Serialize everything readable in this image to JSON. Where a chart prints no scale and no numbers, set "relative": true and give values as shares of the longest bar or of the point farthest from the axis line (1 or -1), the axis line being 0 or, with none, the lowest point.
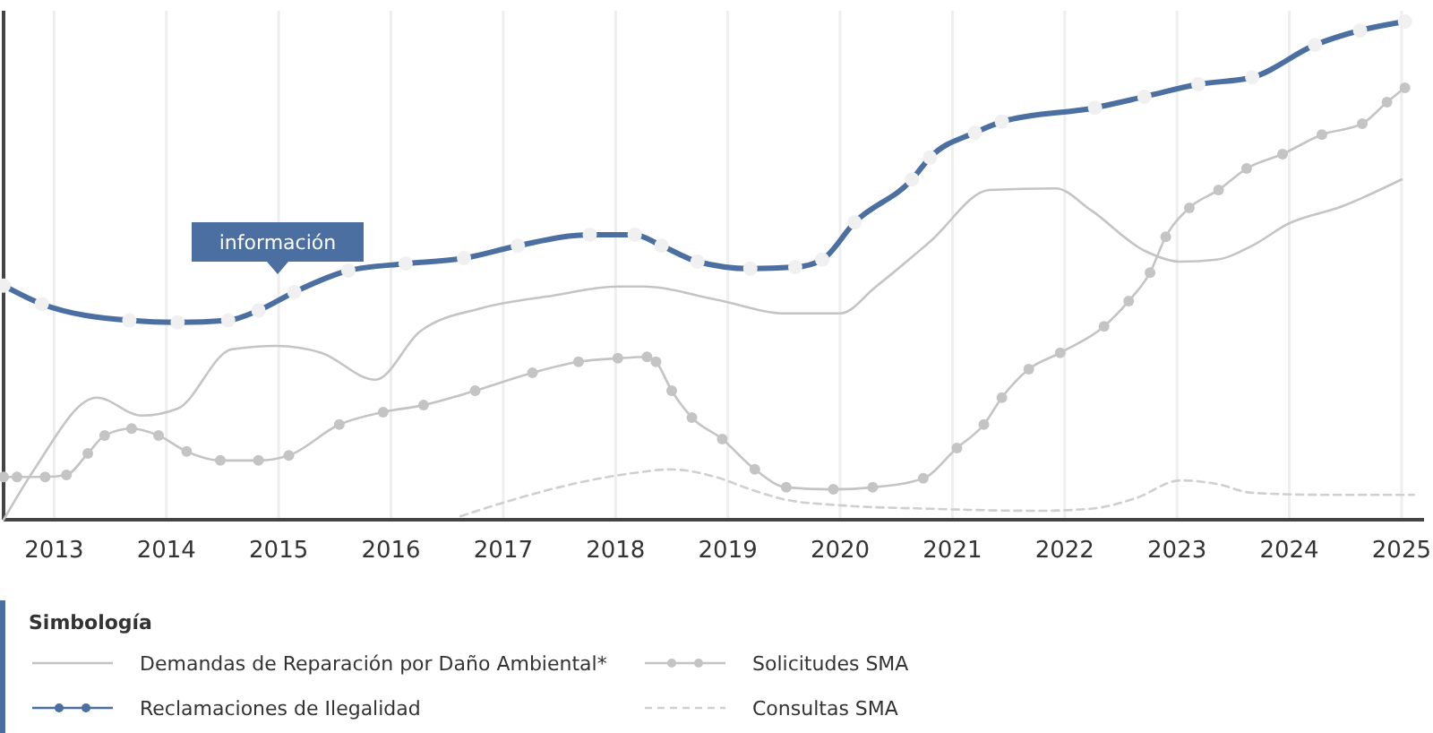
{
  "chart_data": {
    "type": "line",
    "relative": true,
    "legend_title": "Simbología",
    "legend": "bottom",
    "grid": "x",
    "xlim": [
      2012.55,
      2025.2
    ],
    "xticks": [
      2013,
      2014,
      2015,
      2016,
      2017,
      2018,
      2019,
      2020,
      2021,
      2022,
      2023,
      2024,
      2025
    ],
    "annotations": [
      "información"
    ],
    "series": [
      {
        "name": "Demandas de Reparación por Daño Ambiental*",
        "color": "#c4c4c4",
        "marker": "none",
        "line_style": "solid",
        "x": [
          2012.55,
          2012.82,
          2013.38,
          2013.78,
          2014.1,
          2014.58,
          2014.98,
          2015.38,
          2015.86,
          2016.26,
          2016.81,
          2017.45,
          2018.01,
          2018.25,
          2018.89,
          2019.52,
          2020.0,
          2020.32,
          2020.8,
          2021.33,
          2021.92,
          2022.23,
          2022.71,
          2023.03,
          2023.35,
          2023.67,
          2023.99,
          2024.47,
          2025.0
        ],
        "values": [
          0,
          0.1,
          0.245,
          0.209,
          0.223,
          0.342,
          0.349,
          0.335,
          0.281,
          0.378,
          0.425,
          0.45,
          0.468,
          0.468,
          0.442,
          0.414,
          0.414,
          0.468,
          0.558,
          0.662,
          0.665,
          0.622,
          0.54,
          0.518,
          0.522,
          0.55,
          0.594,
          0.629,
          0.683
        ]
      },
      {
        "name": "Solicitudes SMA",
        "color": "#c4c4c4",
        "marker": "circle",
        "line_style": "solid",
        "x": [
          2012.55,
          2012.67,
          2012.92,
          2013.11,
          2013.3,
          2013.45,
          2013.69,
          2013.93,
          2014.18,
          2014.48,
          2014.82,
          2015.09,
          2015.54,
          2015.93,
          2016.29,
          2016.75,
          2017.26,
          2017.67,
          2018.02,
          2018.28,
          2018.36,
          2018.5,
          2018.68,
          2018.95,
          2019.24,
          2019.52,
          2019.94,
          2020.29,
          2020.74,
          2021.04,
          2021.28,
          2021.44,
          2021.68,
          2021.96,
          2022.35,
          2022.57,
          2022.76,
          2022.9,
          2023.11,
          2023.37,
          2023.62,
          2023.94,
          2024.29,
          2024.65,
          2024.87,
          2025.03
        ],
        "values": [
          0.086,
          0.086,
          0.086,
          0.09,
          0.133,
          0.169,
          0.183,
          0.169,
          0.137,
          0.119,
          0.119,
          0.129,
          0.191,
          0.216,
          0.23,
          0.259,
          0.295,
          0.317,
          0.324,
          0.327,
          0.317,
          0.259,
          0.205,
          0.162,
          0.101,
          0.065,
          0.061,
          0.065,
          0.083,
          0.144,
          0.191,
          0.245,
          0.302,
          0.335,
          0.388,
          0.439,
          0.496,
          0.568,
          0.626,
          0.662,
          0.705,
          0.734,
          0.773,
          0.795,
          0.838,
          0.867
        ]
      },
      {
        "name": "Reclamaciones de Ilegalidad",
        "color": "#4a6fa0",
        "marker": "circle",
        "line_style": "solid",
        "x": [
          2012.55,
          2012.89,
          2013.67,
          2014.1,
          2014.55,
          2014.82,
          2015.14,
          2015.62,
          2016.13,
          2016.65,
          2017.13,
          2017.77,
          2018.17,
          2018.41,
          2018.73,
          2019.2,
          2019.6,
          2019.84,
          2020.13,
          2020.64,
          2020.8,
          2021.2,
          2021.44,
          2022.27,
          2022.71,
          2023.19,
          2023.67,
          2024.23,
          2024.63,
          2025.03
        ],
        "values": [
          0.47,
          0.433,
          0.4,
          0.396,
          0.4,
          0.42,
          0.457,
          0.5,
          0.514,
          0.525,
          0.55,
          0.572,
          0.572,
          0.55,
          0.518,
          0.504,
          0.507,
          0.522,
          0.597,
          0.683,
          0.727,
          0.777,
          0.799,
          0.827,
          0.849,
          0.874,
          0.888,
          0.953,
          0.982,
          1
        ]
      },
      {
        "name": "Consultas SMA",
        "color": "#cfcfcf",
        "marker": "none",
        "line_style": "dashed",
        "x": [
          2016.62,
          2017.13,
          2017.77,
          2018.17,
          2018.49,
          2018.89,
          2019.2,
          2019.52,
          2020.0,
          2020.8,
          2021.76,
          2022.23,
          2022.63,
          2023.03,
          2023.35,
          2023.67,
          2024.31,
          2025.11
        ],
        "values": [
          0.007,
          0.043,
          0.079,
          0.094,
          0.101,
          0.086,
          0.061,
          0.04,
          0.029,
          0.022,
          0.018,
          0.022,
          0.043,
          0.079,
          0.072,
          0.054,
          0.05,
          0.05
        ]
      }
    ]
  }
}
